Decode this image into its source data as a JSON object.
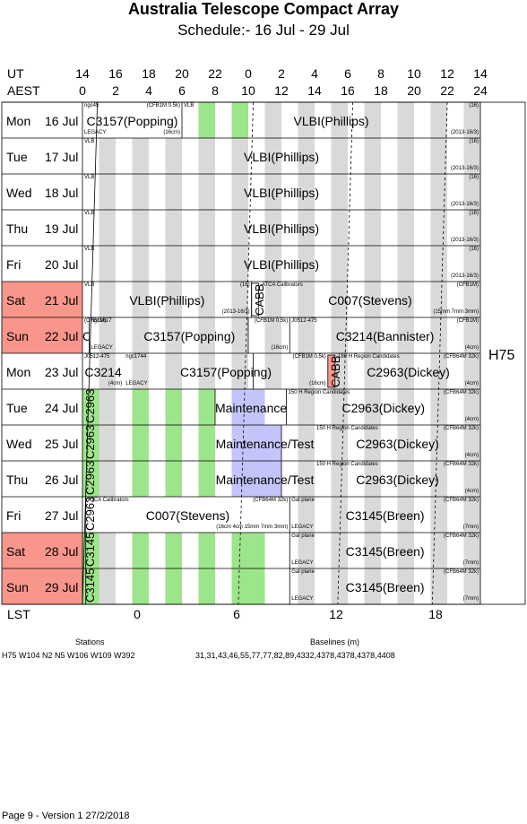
{
  "title": "Australia Telescope Compact Array",
  "subtitle": "Schedule:- 16 Jul - 29 Jul",
  "header": {
    "ut_label": "UT",
    "aest_label": "AEST",
    "ut_ticks": [
      "14",
      "16",
      "18",
      "20",
      "22",
      "0",
      "2",
      "4",
      "6",
      "8",
      "10",
      "12",
      "14"
    ],
    "aest_ticks": [
      "0",
      "2",
      "4",
      "6",
      "8",
      "10",
      "12",
      "14",
      "16",
      "18",
      "20",
      "22",
      "24"
    ]
  },
  "days": [
    {
      "dow": "Mon",
      "date": "16 Jul",
      "weekend": false
    },
    {
      "dow": "Tue",
      "date": "17 Jul",
      "weekend": false
    },
    {
      "dow": "Wed",
      "date": "18 Jul",
      "weekend": false
    },
    {
      "dow": "Thu",
      "date": "19 Jul",
      "weekend": false
    },
    {
      "dow": "Fri",
      "date": "20 Jul",
      "weekend": false
    },
    {
      "dow": "Sat",
      "date": "21 Jul",
      "weekend": true
    },
    {
      "dow": "Sun",
      "date": "22 Jul",
      "weekend": true
    },
    {
      "dow": "Mon",
      "date": "23 Jul",
      "weekend": false
    },
    {
      "dow": "Tue",
      "date": "24 Jul",
      "weekend": false
    },
    {
      "dow": "Wed",
      "date": "25 Jul",
      "weekend": false
    },
    {
      "dow": "Thu",
      "date": "26 Jul",
      "weekend": false
    },
    {
      "dow": "Fri",
      "date": "27 Jul",
      "weekend": false
    },
    {
      "dow": "Sat",
      "date": "28 Jul",
      "weekend": true
    },
    {
      "dow": "Sun",
      "date": "29 Jul",
      "weekend": true
    }
  ],
  "config": "H75",
  "lst": {
    "label": "LST",
    "ticks": [
      "0",
      "6",
      "12",
      "18"
    ]
  },
  "blocks": {
    "b0": {
      "main": "C3157(Popping)",
      "tl": "ngc45",
      "tr": "(CFB1M 0.5k)",
      "bl": "LEGACY",
      "br": "(16cm)"
    },
    "b1": {
      "main": "VLBI(Phillips)",
      "tl": "VLB",
      "tr": "(16)",
      "br": "(2013-16/3)"
    },
    "b2": {
      "main": "VLBI(Phillips)",
      "tl": "VLB",
      "tr": "(16)",
      "br": "(2013-16/3)"
    },
    "b3": {
      "main": "VLBI(Phillips)",
      "tl": "VLB",
      "tr": "(16)",
      "br": "(2013-16/3)"
    },
    "b4": {
      "main": "VLBI(Phillips)",
      "tl": "VLB",
      "tr": "(16)",
      "br": "(2013-16/3)"
    },
    "b5": {
      "main": "VLBI(Phillips)",
      "tl": "VLB",
      "tr": "(16)",
      "br": "(2013-16/3)"
    },
    "b6": {
      "main": "VLBI(Phillips)",
      "tl": "VLB",
      "tr": "(16)",
      "br": "(2013-16/3)"
    },
    "b7": {
      "main": "CABB"
    },
    "b8": {
      "main": "C007(Stevens)",
      "tl": "ATCA Calibrators",
      "tr": "(CFB1M)",
      "br": "(15mm 7mm 3mm)"
    },
    "b9": {
      "main": "C007",
      "tl": "(CFB1M)"
    },
    "b10": {
      "main": "C3157(Popping)",
      "tl": "ngc1617",
      "tr": "(CFB1M 0.5k)",
      "bl": "LEGACY",
      "br": "(16cm)"
    },
    "b11": {
      "main": "C3214(Bannister)",
      "tl": "J0512-475",
      "tr": "(CFB1M)",
      "br": "(4cm)"
    },
    "b12": {
      "main": "C3214",
      "tl": "J0512-475",
      "br": "(4cm)"
    },
    "b13": {
      "main": "C3157(Popping)",
      "tl": "ngc1744",
      "tr": "(CFB1M 0.5k)",
      "bl": "LEGACY",
      "br": "(16cm)"
    },
    "b14": {
      "main": "CABB"
    },
    "b15": {
      "main": "C2963(Dickey)",
      "tl": "180 H   Region Candidates",
      "tr": "(CFB64M 32k)",
      "br": "(4cm)"
    },
    "b16": {
      "main": "C2963"
    },
    "b17": {
      "main": "Maintenance/Test"
    },
    "b18": {
      "main": "C2963(Dickey)",
      "tl": "150 H   Region Candidates",
      "tr": "(CFB64M 32k)",
      "br": "(4cm)"
    },
    "b19": {
      "main": "C2963"
    },
    "b20": {
      "main": "Maintenance/Test"
    },
    "b21": {
      "main": "C2963(Dickey)",
      "tl": "150 H   Region Candidates",
      "tr": "(CFB64M 32k)",
      "br": "(4cm)"
    },
    "b22": {
      "main": "C2963"
    },
    "b23": {
      "main": "Maintenance/Test"
    },
    "b24": {
      "main": "C2963(Dickey)",
      "tl": "150 H   Region Candidates",
      "tr": "(CFB64M 32k)",
      "br": "(4cm)"
    },
    "b25": {
      "main": "C2963"
    },
    "b26": {
      "main": "C007(Stevens)",
      "tl": "ATCA Calibrators",
      "tr": "(CFB64M 32k)",
      "br": "(16cm 4cm 15mm 7mm 3mm)"
    },
    "b27": {
      "main": "C3145(Breen)",
      "tl": "Gal plane",
      "tr": "(CFB64M 32k)",
      "bl": "LEGACY",
      "br": "(7mm)"
    },
    "b28": {
      "main": "C3145"
    },
    "b29": {
      "main": "C3145(Breen)",
      "tl": "Gal plane",
      "tr": "(CFB64M 32k)",
      "bl": "LEGACY",
      "br": "(7mm)"
    },
    "b30": {
      "main": "C3145"
    },
    "b31": {
      "main": "C3145(Breen)",
      "tl": "Gal plane",
      "tr": "(CFB64M 32k)",
      "bl": "LEGACY",
      "br": "(7mm)"
    }
  },
  "footer": {
    "stations_label": "Stations",
    "baselines_label": "Baselines (m)",
    "stations_value": "H75    W104 N2 N5 W106 W109 W392",
    "baselines_value": "31,31,43,46,55,77,77,82,89,4332,4378,4378,4378,4408",
    "page_info": "Page 9 - Version 1  27/2/2018"
  },
  "colors": {
    "weekend": "#f9968b",
    "grey": "#d9d9d9",
    "green": "#9de58a",
    "lavender": "#c4c4fa",
    "grid": "#000000"
  }
}
